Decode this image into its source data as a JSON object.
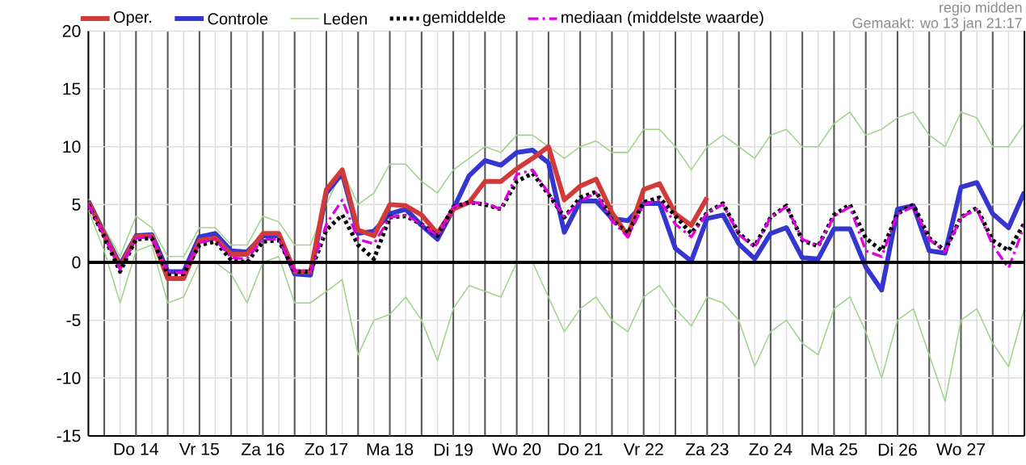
{
  "chart_data": {
    "type": "line",
    "categories": [
      null,
      null,
      null,
      "Do 14",
      null,
      null,
      null,
      "Vr 15",
      null,
      null,
      null,
      "Za 16",
      null,
      null,
      null,
      "Zo 17",
      null,
      null,
      null,
      "Ma 18",
      null,
      null,
      null,
      "Di 19",
      null,
      null,
      null,
      "Wo 20",
      null,
      null,
      null,
      "Do 21",
      null,
      null,
      null,
      "Vr 22",
      null,
      null,
      null,
      "Za 23",
      null,
      null,
      null,
      "Zo 24",
      null,
      null,
      null,
      "Ma 25",
      null,
      null,
      null,
      "Di 26",
      null,
      null,
      null,
      "Wo 27",
      null,
      null,
      null,
      null
    ],
    "series": [
      {
        "name": "Oper.",
        "color": "#d23a3a",
        "values": [
          5.2,
          2.4,
          -0.4,
          2.2,
          2.3,
          -1.4,
          -1.4,
          1.9,
          2.1,
          0.7,
          0.7,
          2.5,
          2.5,
          -0.8,
          -0.8,
          6.3,
          8.0,
          2.8,
          2.3,
          5.0,
          4.9,
          4.1,
          2.5,
          4.6,
          5.2,
          7.0,
          7.0,
          8.1,
          9.0,
          10.0,
          5.4,
          6.6,
          7.2,
          4.3,
          2.3,
          6.3,
          6.8,
          4.2,
          3.2,
          5.6,
          null,
          null,
          null,
          null,
          null,
          null,
          null,
          null,
          null,
          null,
          null,
          null,
          null,
          null,
          null,
          null,
          null,
          null,
          null,
          null
        ]
      },
      {
        "name": "Controle",
        "color": "#3535d0",
        "values": [
          5.3,
          2.5,
          -0.2,
          2.3,
          2.4,
          -0.8,
          -0.8,
          2.2,
          2.5,
          1.0,
          0.9,
          2.3,
          2.3,
          -1.0,
          -1.1,
          6.0,
          7.7,
          2.5,
          2.7,
          4.2,
          4.6,
          3.2,
          2.0,
          4.6,
          7.5,
          8.8,
          8.4,
          9.5,
          9.7,
          8.6,
          2.6,
          5.3,
          5.3,
          3.8,
          3.6,
          5.1,
          5.1,
          1.2,
          0.1,
          3.8,
          4.1,
          1.6,
          0.3,
          2.5,
          3.0,
          0.4,
          0.3,
          2.9,
          2.9,
          -0.4,
          -2.4,
          4.6,
          4.9,
          1.0,
          0.8,
          6.5,
          6.9,
          4.2,
          3.0,
          6.1
        ]
      },
      {
        "name": "Leden",
        "color": "#9fd389",
        "line_style": "solid",
        "values": [
          5.5,
          3,
          0.5,
          4,
          3,
          0.5,
          0.5,
          3,
          3,
          1.5,
          1.5,
          4,
          3.5,
          1.5,
          1.5,
          5,
          8,
          5,
          6,
          8.5,
          8.5,
          7,
          6,
          8,
          9,
          10,
          9.5,
          11,
          11,
          10,
          9,
          10,
          10.5,
          9.5,
          9.5,
          11.5,
          11.5,
          10,
          8,
          10,
          11,
          10,
          9,
          11,
          11.5,
          10,
          10,
          12,
          13,
          11,
          11.5,
          12.5,
          13,
          11,
          10,
          13,
          12.5,
          10,
          10,
          12
        ]
      },
      {
        "color": "#9fd389",
        "line_style": "solid",
        "values": [
          4.5,
          1,
          -3.5,
          1,
          1.5,
          -3.5,
          -3,
          0,
          0,
          -1,
          -3.5,
          0,
          0.5,
          -3.5,
          -3.5,
          -2.5,
          -1.5,
          -8,
          -5,
          -4.5,
          -3,
          -5,
          -8.5,
          -4,
          -2,
          -2.5,
          -3,
          0,
          0,
          -3,
          -6,
          -4,
          -3,
          -5,
          -6,
          -3,
          -2,
          -4,
          -5.5,
          -3,
          -3.5,
          -5,
          -9,
          -6,
          -5,
          -7,
          -8,
          -4,
          -3,
          -6,
          -10,
          -5,
          -4,
          -8,
          -12,
          -5,
          -4,
          -7,
          -9,
          -4
        ]
      },
      {
        "name": "gemiddelde",
        "color": "#000000",
        "line_style": "dotted",
        "values": [
          5.0,
          2.2,
          -0.8,
          2.0,
          2.1,
          -1.0,
          -1.0,
          1.5,
          1.8,
          0.2,
          0.0,
          1.8,
          1.9,
          -0.8,
          -0.8,
          2.8,
          4.1,
          1.5,
          0.3,
          3.9,
          4.0,
          3.3,
          2.3,
          4.8,
          5.2,
          5.0,
          4.6,
          7.0,
          7.7,
          5.9,
          3.9,
          5.6,
          6.1,
          3.7,
          2.5,
          5.2,
          5.6,
          4.0,
          2.5,
          4.3,
          5.1,
          2.5,
          1.4,
          3.9,
          4.9,
          1.9,
          1.4,
          4.1,
          5.0,
          2.1,
          1.0,
          4.2,
          5.0,
          2.1,
          1.0,
          3.9,
          4.7,
          1.9,
          1.0,
          3.4
        ]
      },
      {
        "name": "mediaan (middelste waarde)",
        "color": "#e000e0",
        "line_style": "dashed",
        "values": [
          5.0,
          2.3,
          -0.6,
          2.1,
          2.2,
          -0.8,
          -0.9,
          1.7,
          2.0,
          0.4,
          0.3,
          2.0,
          2.0,
          -0.7,
          -0.8,
          3.3,
          5.4,
          2.0,
          1.6,
          3.9,
          4.1,
          3.3,
          2.3,
          4.8,
          5.2,
          5.1,
          4.6,
          7.6,
          8.0,
          6.0,
          3.9,
          5.3,
          6.0,
          3.6,
          2.2,
          5.0,
          5.4,
          3.3,
          2.2,
          4.3,
          5.0,
          2.4,
          1.3,
          3.9,
          4.8,
          2.0,
          1.4,
          4.0,
          4.8,
          1.0,
          0.5,
          4.2,
          4.8,
          2.0,
          0.9,
          3.9,
          4.6,
          1.5,
          -0.5,
          3.2
        ]
      }
    ],
    "ylim": [
      -15,
      20
    ],
    "yticks": [
      -15,
      -10,
      -5,
      0,
      5,
      10,
      15,
      20
    ],
    "grid": true,
    "legend": "top",
    "ref_lines": [
      {
        "axis": "y",
        "value": 0,
        "color": "#000000"
      }
    ],
    "annotations": [
      "regio midden",
      "Gemaakt: wo 13 jan 21:17"
    ]
  }
}
